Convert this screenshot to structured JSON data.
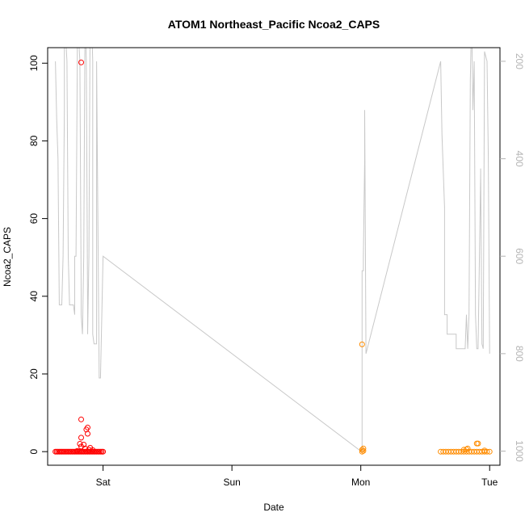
{
  "chart_data": {
    "type": "scatter",
    "title": "ATOM1 Northeast_Pacific Ncoa2_CAPS",
    "xlabel": "Date",
    "ylabel": "Ncoa2_CAPS",
    "x_unit": "day",
    "x_ticks": [
      {
        "label": "Sat",
        "x": 1.0
      },
      {
        "label": "Sun",
        "x": 2.0
      },
      {
        "label": "Mon",
        "x": 3.0
      },
      {
        "label": "Tue",
        "x": 4.0
      }
    ],
    "xlim": [
      0.57,
      4.08
    ],
    "ylim": [
      -3.5,
      104
    ],
    "y_ticks": [
      0,
      20,
      40,
      60,
      80,
      100
    ],
    "y2_ticks": [
      200,
      400,
      600,
      800,
      1000
    ],
    "y2lim": [
      1029,
      172
    ],
    "grid": false,
    "colors": {
      "red": "#ff0000",
      "orange": "#ff8c00",
      "depth": "#c8c8c8",
      "axis": "#000000",
      "axis2": "#b4b4b4"
    },
    "series": [
      {
        "color": "#ff0000",
        "x": [
          0.63,
          0.64,
          0.65,
          0.66,
          0.67,
          0.68,
          0.69,
          0.7,
          0.71,
          0.72,
          0.73,
          0.74,
          0.75,
          0.76,
          0.77,
          0.78,
          0.79,
          0.8,
          0.81,
          0.82,
          0.83,
          0.84,
          0.85,
          0.86,
          0.87,
          0.88,
          0.89,
          0.9,
          0.91,
          0.92,
          0.93,
          0.94,
          0.95,
          0.96,
          0.97,
          0.98,
          0.99,
          1.0,
          0.83,
          0.83,
          0.83,
          0.88,
          0.88,
          0.87,
          0.8,
          0.82,
          0.83,
          0.85,
          0.86,
          0.89,
          0.92,
          0.9
        ],
        "y": [
          0,
          0,
          0,
          0,
          0,
          0,
          0,
          0,
          0,
          0,
          0,
          0,
          0,
          0,
          0,
          0,
          0,
          0,
          0,
          0,
          0,
          0,
          0,
          0,
          0,
          0,
          0,
          0,
          0,
          0,
          0,
          0,
          0,
          0,
          0,
          0,
          0,
          0,
          100.2,
          8.3,
          3.6,
          6.2,
          4.6,
          5.7,
          0.2,
          2.0,
          1.3,
          1.8,
          0.8,
          0.5,
          0.4,
          1.0
        ]
      },
      {
        "color": "#ff8c00",
        "x": [
          3.01,
          3.01,
          3.02,
          3.02,
          3.01,
          3.62,
          3.64,
          3.66,
          3.68,
          3.7,
          3.72,
          3.74,
          3.76,
          3.78,
          3.8,
          3.82,
          3.84,
          3.86,
          3.88,
          3.9,
          3.92,
          3.94,
          3.96,
          3.98,
          4.0,
          3.82,
          3.83,
          3.9,
          3.91,
          3.8,
          3.96
        ],
        "y": [
          27.6,
          0.5,
          0.2,
          0.8,
          0.0,
          0,
          0,
          0,
          0,
          0,
          0,
          0,
          0,
          0,
          0,
          0,
          0,
          0,
          0,
          0,
          0,
          0,
          0,
          0,
          0,
          0.6,
          0.8,
          2.1,
          2.1,
          0.5,
          0.3
        ]
      }
    ],
    "depth_series": {
      "color": "#c8c8c8",
      "x": [
        0.63,
        0.64,
        0.65,
        0.66,
        0.68,
        0.69,
        0.7,
        0.7,
        0.72,
        0.73,
        0.74,
        0.74,
        0.77,
        0.78,
        0.78,
        0.79,
        0.8,
        0.8,
        0.82,
        0.83,
        0.83,
        0.84,
        0.84,
        0.85,
        0.86,
        0.86,
        0.87,
        0.88,
        0.88,
        0.89,
        0.9,
        0.91,
        0.92,
        0.92,
        0.93,
        0.95,
        0.95,
        0.97,
        0.98,
        1.0,
        3.0,
        3.01,
        3.01,
        3.02,
        3.02,
        3.03,
        3.03,
        3.04,
        3.62,
        3.63,
        3.65,
        3.65,
        3.67,
        3.67,
        3.74,
        3.74,
        3.81,
        3.81,
        3.82,
        3.83,
        3.84,
        3.85,
        3.86,
        3.87,
        3.88,
        3.89,
        3.9,
        3.91,
        3.93,
        3.93,
        3.94,
        3.95,
        3.96,
        3.98,
        3.99,
        4.0
      ],
      "y": [
        200,
        320,
        400,
        700,
        700,
        600,
        300,
        100,
        200,
        600,
        700,
        700,
        700,
        720,
        600,
        600,
        200,
        100,
        200,
        680,
        720,
        760,
        760,
        600,
        100,
        100,
        200,
        720,
        760,
        600,
        100,
        100,
        200,
        760,
        780,
        780,
        200,
        850,
        850,
        600,
        1000,
        1000,
        630,
        630,
        600,
        400,
        300,
        800,
        200,
        350,
        500,
        720,
        720,
        760,
        760,
        790,
        790,
        790,
        720,
        790,
        720,
        240,
        100,
        300,
        200,
        720,
        790,
        790,
        430,
        420,
        780,
        790,
        180,
        200,
        400,
        800
      ]
    }
  }
}
